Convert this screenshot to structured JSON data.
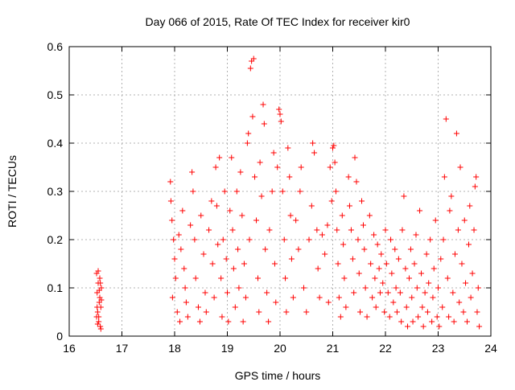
{
  "chart_data": {
    "type": "scatter",
    "title": "Day 066 of 2015, Rate Of TEC Index for receiver kir0",
    "xlabel": "GPS time / hours",
    "ylabel": "ROTI / TECUs",
    "xlim": [
      16,
      24
    ],
    "ylim": [
      0,
      0.6
    ],
    "x_ticks": [
      16,
      17,
      18,
      19,
      20,
      21,
      22,
      23,
      24
    ],
    "y_ticks": [
      0,
      0.1,
      0.2,
      0.3,
      0.4,
      0.5,
      0.6
    ],
    "x_tick_labels": [
      "16",
      "17",
      "18",
      "19",
      "20",
      "21",
      "22",
      "23",
      "24"
    ],
    "y_tick_labels": [
      "0",
      "0.1",
      "0.2",
      "0.3",
      "0.4",
      "0.5",
      "0.6"
    ],
    "grid": true,
    "marker": "+",
    "color": "#ff0000",
    "series": [
      {
        "points": [
          [
            16.52,
            0.13
          ],
          [
            16.53,
            0.09
          ],
          [
            16.54,
            0.05
          ],
          [
            16.55,
            0.11
          ],
          [
            16.56,
            0.03
          ],
          [
            16.57,
            0.07
          ],
          [
            16.58,
            0.12
          ],
          [
            16.59,
            0.02
          ],
          [
            16.6,
            0.06
          ],
          [
            16.61,
            0.1
          ],
          [
            16.52,
            0.04
          ],
          [
            16.55,
            0.135
          ],
          [
            16.58,
            0.08
          ],
          [
            16.6,
            0.015
          ],
          [
            16.54,
            0.025
          ],
          [
            16.57,
            0.095
          ],
          [
            16.53,
            0.06
          ],
          [
            16.59,
            0.11
          ],
          [
            16.56,
            0.04
          ],
          [
            16.61,
            0.075
          ],
          [
            17.92,
            0.32
          ],
          [
            17.93,
            0.28
          ],
          [
            17.95,
            0.24
          ],
          [
            17.98,
            0.2
          ],
          [
            18.0,
            0.16
          ],
          [
            18.02,
            0.12
          ],
          [
            17.96,
            0.08
          ],
          [
            18.05,
            0.05
          ],
          [
            18.1,
            0.03
          ],
          [
            18.08,
            0.21
          ],
          [
            18.12,
            0.18
          ],
          [
            18.15,
            0.26
          ],
          [
            18.18,
            0.14
          ],
          [
            18.2,
            0.1
          ],
          [
            18.22,
            0.07
          ],
          [
            18.25,
            0.04
          ],
          [
            18.3,
            0.23
          ],
          [
            18.33,
            0.34
          ],
          [
            18.35,
            0.3
          ],
          [
            18.38,
            0.2
          ],
          [
            18.4,
            0.12
          ],
          [
            18.45,
            0.06
          ],
          [
            18.48,
            0.03
          ],
          [
            18.5,
            0.25
          ],
          [
            18.55,
            0.17
          ],
          [
            18.58,
            0.09
          ],
          [
            18.6,
            0.05
          ],
          [
            18.65,
            0.22
          ],
          [
            18.7,
            0.28
          ],
          [
            18.72,
            0.15
          ],
          [
            18.75,
            0.08
          ],
          [
            18.78,
            0.35
          ],
          [
            18.8,
            0.27
          ],
          [
            18.82,
            0.19
          ],
          [
            18.85,
            0.37
          ],
          [
            18.88,
            0.12
          ],
          [
            18.9,
            0.04
          ],
          [
            18.92,
            0.2
          ],
          [
            18.95,
            0.3
          ],
          [
            18.98,
            0.16
          ],
          [
            19.0,
            0.09
          ],
          [
            19.02,
            0.03
          ],
          [
            19.05,
            0.26
          ],
          [
            19.08,
            0.37
          ],
          [
            19.1,
            0.22
          ],
          [
            19.12,
            0.14
          ],
          [
            19.15,
            0.06
          ],
          [
            19.18,
            0.3
          ],
          [
            19.2,
            0.18
          ],
          [
            19.22,
            0.1
          ],
          [
            19.25,
            0.34
          ],
          [
            19.28,
            0.25
          ],
          [
            19.3,
            0.03
          ],
          [
            19.32,
            0.15
          ],
          [
            19.35,
            0.08
          ],
          [
            19.38,
            0.4
          ],
          [
            19.4,
            0.42
          ],
          [
            19.42,
            0.2
          ],
          [
            19.44,
            0.555
          ],
          [
            19.46,
            0.57
          ],
          [
            19.48,
            0.455
          ],
          [
            19.5,
            0.575
          ],
          [
            19.52,
            0.33
          ],
          [
            19.55,
            0.24
          ],
          [
            19.58,
            0.12
          ],
          [
            19.6,
            0.05
          ],
          [
            19.62,
            0.36
          ],
          [
            19.65,
            0.29
          ],
          [
            19.68,
            0.48
          ],
          [
            19.7,
            0.44
          ],
          [
            19.72,
            0.18
          ],
          [
            19.75,
            0.09
          ],
          [
            19.78,
            0.03
          ],
          [
            19.8,
            0.22
          ],
          [
            19.85,
            0.3
          ],
          [
            19.88,
            0.38
          ],
          [
            19.9,
            0.15
          ],
          [
            19.92,
            0.07
          ],
          [
            19.95,
            0.35
          ],
          [
            19.98,
            0.47
          ],
          [
            20.0,
            0.46
          ],
          [
            20.02,
            0.445
          ],
          [
            20.05,
            0.3
          ],
          [
            20.08,
            0.2
          ],
          [
            20.1,
            0.12
          ],
          [
            20.12,
            0.05
          ],
          [
            20.15,
            0.39
          ],
          [
            20.18,
            0.33
          ],
          [
            20.2,
            0.25
          ],
          [
            20.22,
            0.16
          ],
          [
            20.25,
            0.08
          ],
          [
            20.3,
            0.24
          ],
          [
            20.35,
            0.18
          ],
          [
            20.38,
            0.3
          ],
          [
            20.4,
            0.35
          ],
          [
            20.45,
            0.1
          ],
          [
            20.5,
            0.05
          ],
          [
            20.55,
            0.2
          ],
          [
            20.6,
            0.27
          ],
          [
            20.62,
            0.4
          ],
          [
            20.65,
            0.38
          ],
          [
            20.7,
            0.22
          ],
          [
            20.72,
            0.14
          ],
          [
            20.75,
            0.08
          ],
          [
            20.8,
            0.21
          ],
          [
            20.85,
            0.17
          ],
          [
            20.9,
            0.23
          ],
          [
            20.92,
            0.07
          ],
          [
            20.95,
            0.35
          ],
          [
            20.98,
            0.28
          ],
          [
            21.0,
            0.39
          ],
          [
            21.02,
            0.395
          ],
          [
            21.04,
            0.36
          ],
          [
            21.06,
            0.3
          ],
          [
            21.08,
            0.22
          ],
          [
            21.1,
            0.15
          ],
          [
            21.12,
            0.08
          ],
          [
            21.15,
            0.04
          ],
          [
            21.18,
            0.25
          ],
          [
            21.2,
            0.19
          ],
          [
            21.22,
            0.12
          ],
          [
            21.25,
            0.06
          ],
          [
            21.3,
            0.33
          ],
          [
            21.32,
            0.27
          ],
          [
            21.35,
            0.22
          ],
          [
            21.38,
            0.16
          ],
          [
            21.4,
            0.09
          ],
          [
            21.42,
            0.37
          ],
          [
            21.45,
            0.32
          ],
          [
            21.48,
            0.2
          ],
          [
            21.5,
            0.13
          ],
          [
            21.52,
            0.05
          ],
          [
            21.55,
            0.28
          ],
          [
            21.58,
            0.23
          ],
          [
            21.6,
            0.18
          ],
          [
            21.62,
            0.1
          ],
          [
            21.65,
            0.04
          ],
          [
            21.7,
            0.25
          ],
          [
            21.72,
            0.15
          ],
          [
            21.75,
            0.08
          ],
          [
            21.78,
            0.21
          ],
          [
            21.8,
            0.12
          ],
          [
            21.82,
            0.06
          ],
          [
            21.85,
            0.19
          ],
          [
            21.88,
            0.14
          ],
          [
            21.9,
            0.09
          ],
          [
            21.92,
            0.17
          ],
          [
            21.95,
            0.11
          ],
          [
            21.98,
            0.05
          ],
          [
            22.0,
            0.22
          ],
          [
            22.02,
            0.15
          ],
          [
            22.05,
            0.09
          ],
          [
            22.08,
            0.04
          ],
          [
            22.1,
            0.2
          ],
          [
            22.12,
            0.13
          ],
          [
            22.15,
            0.07
          ],
          [
            22.18,
            0.18
          ],
          [
            22.2,
            0.1
          ],
          [
            22.22,
            0.05
          ],
          [
            22.25,
            0.16
          ],
          [
            22.28,
            0.09
          ],
          [
            22.3,
            0.03
          ],
          [
            22.32,
            0.22
          ],
          [
            22.35,
            0.29
          ],
          [
            22.38,
            0.14
          ],
          [
            22.4,
            0.06
          ],
          [
            22.42,
            0.02
          ],
          [
            22.45,
            0.12
          ],
          [
            22.48,
            0.18
          ],
          [
            22.5,
            0.08
          ],
          [
            22.52,
            0.03
          ],
          [
            22.55,
            0.15
          ],
          [
            22.58,
            0.21
          ],
          [
            22.6,
            0.1
          ],
          [
            22.62,
            0.04
          ],
          [
            22.65,
            0.26
          ],
          [
            22.68,
            0.13
          ],
          [
            22.7,
            0.06
          ],
          [
            22.72,
            0.02
          ],
          [
            22.75,
            0.09
          ],
          [
            22.78,
            0.17
          ],
          [
            22.8,
            0.05
          ],
          [
            22.82,
            0.11
          ],
          [
            22.85,
            0.2
          ],
          [
            22.88,
            0.03
          ],
          [
            22.9,
            0.08
          ],
          [
            22.92,
            0.14
          ],
          [
            22.95,
            0.24
          ],
          [
            22.98,
            0.04
          ],
          [
            23.0,
            0.1
          ],
          [
            23.02,
            0.02
          ],
          [
            23.05,
            0.16
          ],
          [
            23.08,
            0.06
          ],
          [
            23.1,
            0.2
          ],
          [
            23.12,
            0.33
          ],
          [
            23.15,
            0.45
          ],
          [
            23.18,
            0.12
          ],
          [
            23.2,
            0.04
          ],
          [
            23.22,
            0.26
          ],
          [
            23.25,
            0.29
          ],
          [
            23.28,
            0.09
          ],
          [
            23.3,
            0.03
          ],
          [
            23.32,
            0.17
          ],
          [
            23.35,
            0.42
          ],
          [
            23.38,
            0.22
          ],
          [
            23.4,
            0.07
          ],
          [
            23.42,
            0.35
          ],
          [
            23.45,
            0.15
          ],
          [
            23.48,
            0.05
          ],
          [
            23.5,
            0.24
          ],
          [
            23.52,
            0.11
          ],
          [
            23.55,
            0.03
          ],
          [
            23.58,
            0.19
          ],
          [
            23.6,
            0.27
          ],
          [
            23.62,
            0.08
          ],
          [
            23.65,
            0.13
          ],
          [
            23.68,
            0.22
          ],
          [
            23.7,
            0.31
          ],
          [
            23.72,
            0.33
          ],
          [
            23.74,
            0.05
          ],
          [
            23.76,
            0.1
          ],
          [
            23.78,
            0.02
          ]
        ]
      }
    ]
  }
}
